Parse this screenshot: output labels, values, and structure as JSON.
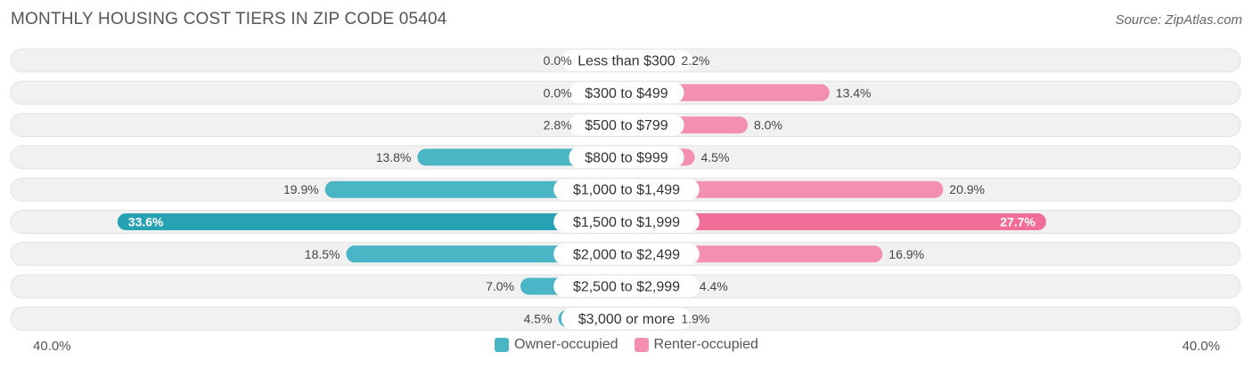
{
  "header": {
    "title": "MONTHLY HOUSING COST TIERS IN ZIP CODE 05404",
    "source": "Source: ZipAtlas.com"
  },
  "colors": {
    "owner": "#4ab5c4",
    "owner_strong": "#27a2b4",
    "renter": "#f38fb0",
    "renter_strong": "#f06e98",
    "row_bg": "#f1f1f1"
  },
  "legend": {
    "owner_label": "Owner-occupied",
    "renter_label": "Renter-occupied"
  },
  "axis": {
    "left_label": "40.0%",
    "right_label": "40.0%"
  },
  "chart_data": {
    "type": "bar",
    "orientation": "horizontal-diverging",
    "categories": [
      "Less than $300",
      "$300 to $499",
      "$500 to $799",
      "$800 to $999",
      "$1,000 to $1,499",
      "$1,500 to $1,999",
      "$2,000 to $2,499",
      "$2,500 to $2,999",
      "$3,000 or more"
    ],
    "series": [
      {
        "name": "Owner-occupied",
        "values": [
          0.0,
          0.0,
          2.8,
          13.8,
          19.9,
          33.6,
          18.5,
          7.0,
          4.5
        ],
        "labels": [
          "0.0%",
          "0.0%",
          "2.8%",
          "13.8%",
          "19.9%",
          "33.6%",
          "18.5%",
          "7.0%",
          "4.5%"
        ]
      },
      {
        "name": "Renter-occupied",
        "values": [
          2.2,
          13.4,
          8.0,
          4.5,
          20.9,
          27.7,
          16.9,
          4.4,
          1.9
        ],
        "labels": [
          "2.2%",
          "13.4%",
          "8.0%",
          "4.5%",
          "20.9%",
          "27.7%",
          "16.9%",
          "4.4%",
          "1.9%"
        ]
      }
    ],
    "xlim": [
      -40,
      40
    ],
    "legend_position": "bottom-center"
  }
}
